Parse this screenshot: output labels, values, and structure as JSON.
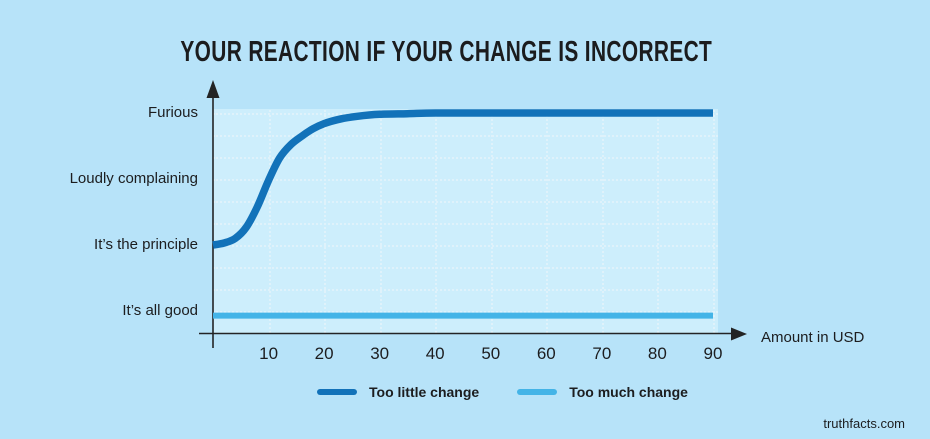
{
  "title": "YOUR REACTION IF YOUR CHANGE IS INCORRECT",
  "watermark": "truthfacts.com",
  "colors": {
    "background": "#b7e3f9",
    "plot_background": "#cdeefc",
    "gridline": "#dff2fb",
    "axis": "#232425",
    "text": "#1c1d1f",
    "series_dark_blue": "#1272b9",
    "series_light_blue": "#44b4e7"
  },
  "chart_data": {
    "type": "line",
    "title": "YOUR REACTION IF YOUR CHANGE IS INCORRECT",
    "xlabel": "Amount in USD",
    "ylabel": "",
    "x_range": [
      0,
      90
    ],
    "x_ticks": [
      10,
      20,
      30,
      40,
      50,
      60,
      70,
      80,
      90
    ],
    "y_levels": [
      "It’s all good",
      "It’s the principle",
      "Loudly complaining",
      "Furious"
    ],
    "grid": "dotted",
    "legend_position": "bottom",
    "series": [
      {
        "name": "Too little change",
        "color": "#1272b9",
        "shape": "sigmoid rising from “It’s the principle” to plateau at “Furious”",
        "points": [
          [
            0,
            1.0
          ],
          [
            2,
            1.03
          ],
          [
            4,
            1.1
          ],
          [
            6,
            1.27
          ],
          [
            8,
            1.58
          ],
          [
            10,
            1.98
          ],
          [
            12,
            2.32
          ],
          [
            14,
            2.52
          ],
          [
            16,
            2.65
          ],
          [
            18,
            2.76
          ],
          [
            20,
            2.84
          ],
          [
            23,
            2.91
          ],
          [
            26,
            2.95
          ],
          [
            30,
            2.98
          ],
          [
            35,
            2.99
          ],
          [
            40,
            3.0
          ],
          [
            50,
            3.0
          ],
          [
            90,
            3.0
          ]
        ]
      },
      {
        "name": "Too much change",
        "color": "#44b4e7",
        "shape": "flat line at “It’s all good”",
        "points": [
          [
            0,
            -0.07
          ],
          [
            90,
            -0.07
          ]
        ]
      }
    ]
  }
}
